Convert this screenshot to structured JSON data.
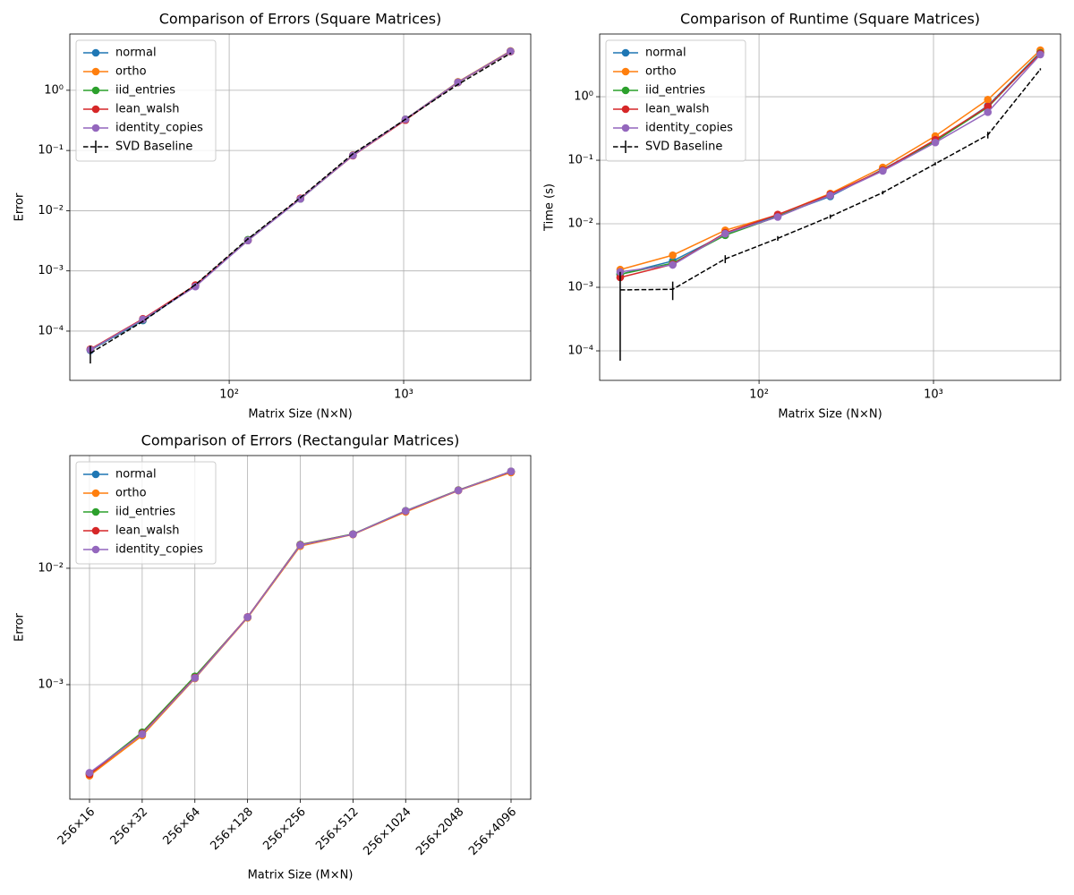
{
  "chart_data": [
    {
      "type": "line",
      "title": "Comparison of Errors (Square Matrices)",
      "xlabel": "Matrix Size (N×N)",
      "ylabel": "Error",
      "x": [
        16,
        32,
        64,
        128,
        256,
        512,
        1024,
        2048,
        4096
      ],
      "xscale": "log",
      "yscale": "log",
      "grid": true,
      "legend": "upper left",
      "xlim": [
        12.2,
        5350
      ],
      "ylim": [
        1.52e-05,
        8.6
      ],
      "xticks": [
        {
          "value": 100,
          "label": "10²"
        },
        {
          "value": 1000,
          "label": "10³"
        }
      ],
      "yticks": [
        {
          "value": 0.0001,
          "label": "10⁻⁴"
        },
        {
          "value": 0.001,
          "label": "10⁻³"
        },
        {
          "value": 0.01,
          "label": "10⁻²"
        },
        {
          "value": 0.1,
          "label": "10⁻¹"
        },
        {
          "value": 1,
          "label": "10⁰"
        }
      ],
      "series": [
        {
          "name": "normal",
          "color": "#1f77b4",
          "marker": "o",
          "linestyle": "solid",
          "values": [
            4.8e-05,
            0.00015,
            0.00056,
            0.0032,
            0.0158,
            0.083,
            0.325,
            1.35,
            4.4
          ]
        },
        {
          "name": "ortho",
          "color": "#ff7f0e",
          "marker": "o",
          "linestyle": "solid",
          "values": [
            5e-05,
            0.000158,
            0.00057,
            0.00325,
            0.016,
            0.084,
            0.33,
            1.38,
            4.5
          ]
        },
        {
          "name": "iid_entries",
          "color": "#2ca02c",
          "marker": "o",
          "linestyle": "solid",
          "values": [
            4.9e-05,
            0.000155,
            0.00056,
            0.0033,
            0.0157,
            0.083,
            0.33,
            1.36,
            4.45
          ]
        },
        {
          "name": "lean_walsh",
          "color": "#d62728",
          "marker": "o",
          "linestyle": "solid",
          "values": [
            5e-05,
            0.00016,
            0.00058,
            0.0032,
            0.016,
            0.082,
            0.32,
            1.35,
            4.4
          ]
        },
        {
          "name": "identity_copies",
          "color": "#9467bd",
          "marker": "o",
          "linestyle": "solid",
          "values": [
            4.9e-05,
            0.000156,
            0.00055,
            0.0032,
            0.0157,
            0.083,
            0.33,
            1.36,
            4.45
          ]
        },
        {
          "name": "SVD Baseline",
          "color": "#000000",
          "marker": "none",
          "linestyle": "dashed",
          "values": [
            4.3e-05,
            0.000145,
            0.00059,
            0.0034,
            0.0165,
            0.088,
            0.33,
            1.25,
            4.1
          ],
          "errors": [
            1.4e-05,
            5e-06,
            2e-05,
            0.0001,
            0.0005,
            0.002,
            0.008,
            0.03,
            0.1
          ]
        }
      ]
    },
    {
      "type": "line",
      "title": "Comparison of Runtime (Square Matrices)",
      "xlabel": "Matrix Size (N×N)",
      "ylabel": "Time (s)",
      "x": [
        16,
        32,
        64,
        128,
        256,
        512,
        1024,
        2048,
        4096
      ],
      "xscale": "log",
      "yscale": "log",
      "grid": true,
      "legend": "upper left",
      "xlim": [
        12.2,
        5350
      ],
      "ylim": [
        3.43e-05,
        9.7
      ],
      "xticks": [
        {
          "value": 100,
          "label": "10²"
        },
        {
          "value": 1000,
          "label": "10³"
        }
      ],
      "yticks": [
        {
          "value": 0.0001,
          "label": "10⁻⁴"
        },
        {
          "value": 0.001,
          "label": "10⁻³"
        },
        {
          "value": 0.01,
          "label": "10⁻²"
        },
        {
          "value": 0.1,
          "label": "10⁻¹"
        },
        {
          "value": 1,
          "label": "10⁰"
        }
      ],
      "series": [
        {
          "name": "normal",
          "color": "#1f77b4",
          "marker": "o",
          "linestyle": "solid",
          "values": [
            0.0016,
            0.0026,
            0.0068,
            0.0134,
            0.027,
            0.072,
            0.2,
            0.72,
            5.0
          ]
        },
        {
          "name": "ortho",
          "color": "#ff7f0e",
          "marker": "o",
          "linestyle": "solid",
          "values": [
            0.0019,
            0.0032,
            0.0079,
            0.0138,
            0.03,
            0.077,
            0.24,
            0.9,
            5.4
          ]
        },
        {
          "name": "iid_entries",
          "color": "#2ca02c",
          "marker": "o",
          "linestyle": "solid",
          "values": [
            0.0016,
            0.0024,
            0.0066,
            0.013,
            0.028,
            0.07,
            0.2,
            0.68,
            4.9
          ]
        },
        {
          "name": "lean_walsh",
          "color": "#d62728",
          "marker": "o",
          "linestyle": "solid",
          "values": [
            0.00143,
            0.0023,
            0.0072,
            0.014,
            0.029,
            0.07,
            0.21,
            0.7,
            4.8
          ]
        },
        {
          "name": "identity_copies",
          "color": "#9467bd",
          "marker": "o",
          "linestyle": "solid",
          "values": [
            0.00175,
            0.00225,
            0.007,
            0.0128,
            0.028,
            0.068,
            0.19,
            0.57,
            4.6
          ]
        },
        {
          "name": "SVD Baseline",
          "color": "#000000",
          "marker": "none",
          "linestyle": "dashed",
          "values": [
            0.00091,
            0.00093,
            0.0028,
            0.0059,
            0.013,
            0.031,
            0.088,
            0.25,
            2.7
          ],
          "errors": [
            0.00084,
            0.0003,
            0.0004,
            0.0005,
            0.001,
            0.002,
            0.005,
            0.03,
            0.1
          ]
        }
      ]
    },
    {
      "type": "line",
      "title": "Comparison of Errors (Rectangular Matrices)",
      "xlabel": "Matrix Size (M×N)",
      "ylabel": "Error",
      "categories": [
        "256×16",
        "256×32",
        "256×64",
        "256×128",
        "256×256",
        "256×512",
        "256×1024",
        "256×2048",
        "256×4096"
      ],
      "yscale": "log",
      "grid": true,
      "legend": "upper left",
      "ylim": [
        0.0001036,
        0.093
      ],
      "yticks": [
        {
          "value": 0.001,
          "label": "10⁻³"
        },
        {
          "value": 0.01,
          "label": "10⁻²"
        }
      ],
      "series": [
        {
          "name": "normal",
          "color": "#1f77b4",
          "marker": "o",
          "linestyle": "solid",
          "values": [
            0.00017,
            0.00038,
            0.00115,
            0.0038,
            0.0159,
            0.0196,
            0.031,
            0.0467,
            0.0678
          ]
        },
        {
          "name": "ortho",
          "color": "#ff7f0e",
          "marker": "o",
          "linestyle": "solid",
          "values": [
            0.000165,
            0.000365,
            0.00113,
            0.00375,
            0.0155,
            0.0195,
            0.0305,
            0.0465,
            0.0665
          ]
        },
        {
          "name": "iid_entries",
          "color": "#2ca02c",
          "marker": "o",
          "linestyle": "solid",
          "values": [
            0.000172,
            0.00039,
            0.00118,
            0.0038,
            0.016,
            0.0197,
            0.0312,
            0.047,
            0.068
          ]
        },
        {
          "name": "lean_walsh",
          "color": "#d62728",
          "marker": "o",
          "linestyle": "solid",
          "values": [
            0.00017,
            0.00038,
            0.00115,
            0.00382,
            0.0159,
            0.0196,
            0.031,
            0.0468,
            0.0678
          ]
        },
        {
          "name": "identity_copies",
          "color": "#9467bd",
          "marker": "o",
          "linestyle": "solid",
          "values": [
            0.000175,
            0.000375,
            0.00114,
            0.0038,
            0.0158,
            0.0196,
            0.0311,
            0.0467,
            0.068
          ]
        }
      ]
    }
  ]
}
